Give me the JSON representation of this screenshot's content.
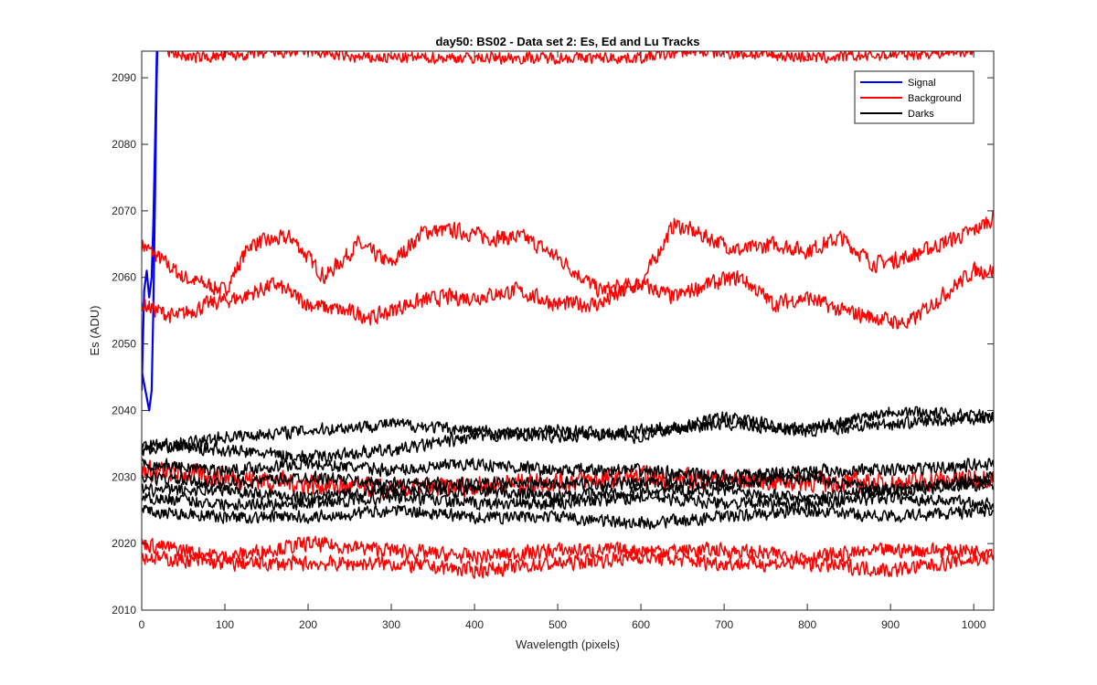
{
  "chart_data": {
    "type": "line",
    "title": "day50: BS02 - Data set 2: Es, Ed and Lu Tracks",
    "xlabel": "Wavelength (pixels)",
    "ylabel": "Es (ADU)",
    "xlim": [
      0,
      1024
    ],
    "ylim": [
      2010,
      2094
    ],
    "x_ticks": [
      0,
      100,
      200,
      300,
      400,
      500,
      600,
      700,
      800,
      900,
      1000
    ],
    "y_ticks": [
      2010,
      2020,
      2030,
      2040,
      2050,
      2060,
      2070,
      2080,
      2090
    ],
    "grid": false,
    "legend": {
      "location": "top-right",
      "entries": [
        {
          "label": "Signal",
          "color": "#0000ff"
        },
        {
          "label": "Background",
          "color": "#ff0000"
        },
        {
          "label": "Darks",
          "color": "#000000"
        }
      ]
    },
    "series": [
      {
        "group": "Signal",
        "color": "#0000ff",
        "x": [
          0,
          3,
          6,
          9,
          12,
          14,
          16,
          18,
          20
        ],
        "y": [
          2043,
          2058,
          2061,
          2057,
          2060,
          2068,
          2080,
          2093,
          2100
        ]
      },
      {
        "group": "Signal",
        "color": "#0000ff",
        "x": [
          0,
          3,
          6,
          9,
          12,
          14,
          16,
          18,
          20
        ],
        "y": [
          2046,
          2044,
          2042,
          2040,
          2043,
          2055,
          2072,
          2090,
          2100
        ]
      },
      {
        "group": "Background",
        "color": "#ff0000",
        "noise": 1.4,
        "x": [
          0,
          50,
          100,
          130,
          180,
          220,
          260,
          300,
          340,
          380,
          420,
          460,
          500,
          550,
          600,
          640,
          680,
          720,
          760,
          800,
          840,
          880,
          920,
          960,
          1000,
          1024
        ],
        "y": [
          2065,
          2060,
          2058,
          2065,
          2066,
          2060,
          2065,
          2062,
          2067,
          2067,
          2066,
          2066,
          2063,
          2058,
          2059,
          2068,
          2066,
          2064,
          2065,
          2064,
          2066,
          2062,
          2063,
          2065,
          2067,
          2069
        ]
      },
      {
        "group": "Background",
        "color": "#ff0000",
        "noise": 1.4,
        "x": [
          0,
          40,
          80,
          120,
          160,
          200,
          240,
          280,
          320,
          360,
          400,
          450,
          500,
          550,
          600,
          640,
          680,
          720,
          760,
          800,
          840,
          880,
          920,
          960,
          1000,
          1024
        ],
        "y": [
          2056,
          2054,
          2056,
          2057,
          2059,
          2056,
          2055,
          2054,
          2056,
          2057,
          2057,
          2058,
          2056,
          2056,
          2059,
          2057,
          2059,
          2060,
          2056,
          2057,
          2055,
          2054,
          2053,
          2057,
          2061,
          2061
        ]
      },
      {
        "group": "Background",
        "color": "#ff0000",
        "noise": 1.8,
        "x": [
          0,
          300,
          600,
          900,
          1024
        ],
        "y": [
          2031,
          2028,
          2030,
          2029,
          2030
        ]
      },
      {
        "group": "Background",
        "color": "#ff0000",
        "noise": 1.3,
        "x": [
          0,
          100,
          200,
          300,
          400,
          500,
          600,
          700,
          800,
          900,
          1024
        ],
        "y": [
          2020,
          2018,
          2020,
          2019,
          2018,
          2019,
          2019,
          2019,
          2018,
          2019,
          2019
        ]
      },
      {
        "group": "Background",
        "color": "#ff0000",
        "noise": 1.3,
        "x": [
          0,
          100,
          200,
          300,
          400,
          500,
          600,
          700,
          800,
          900,
          1024
        ],
        "y": [
          2018,
          2017,
          2017,
          2017,
          2016,
          2017,
          2018,
          2017,
          2017,
          2016,
          2018
        ]
      },
      {
        "group": "Background",
        "color": "#ff0000",
        "noise": 1.0,
        "clip": true,
        "x": [
          30,
          60,
          200,
          260,
          600,
          660,
          820,
          1000
        ],
        "y": [
          2094,
          2093,
          2094,
          2093,
          2093,
          2094,
          2093,
          2094
        ]
      },
      {
        "group": "Darks",
        "color": "#000000",
        "noise": 1.1,
        "x": [
          0,
          100,
          200,
          300,
          400,
          500,
          600,
          700,
          800,
          900,
          1024
        ],
        "y": [
          2034,
          2036,
          2037,
          2038,
          2037,
          2036,
          2037,
          2038,
          2037,
          2038,
          2039
        ]
      },
      {
        "group": "Darks",
        "color": "#000000",
        "noise": 1.1,
        "x": [
          0,
          100,
          200,
          300,
          400,
          500,
          600,
          700,
          800,
          900,
          1024
        ],
        "y": [
          2035,
          2034,
          2033,
          2034,
          2036,
          2037,
          2036,
          2039,
          2037,
          2040,
          2039
        ]
      },
      {
        "group": "Darks",
        "color": "#000000",
        "noise": 1.1,
        "x": [
          0,
          100,
          200,
          300,
          400,
          500,
          600,
          700,
          800,
          900,
          1024
        ],
        "y": [
          2032,
          2031,
          2032,
          2031,
          2032,
          2031,
          2031,
          2030,
          2031,
          2031,
          2032
        ]
      },
      {
        "group": "Darks",
        "color": "#000000",
        "noise": 1.1,
        "x": [
          0,
          100,
          200,
          300,
          400,
          500,
          600,
          700,
          800,
          900,
          1024
        ],
        "y": [
          2030,
          2029,
          2030,
          2029,
          2029,
          2029,
          2029,
          2029,
          2030,
          2028,
          2030
        ]
      },
      {
        "group": "Darks",
        "color": "#000000",
        "noise": 1.1,
        "x": [
          0,
          100,
          200,
          300,
          400,
          500,
          600,
          700,
          800,
          900,
          1024
        ],
        "y": [
          2028,
          2028,
          2027,
          2028,
          2028,
          2027,
          2028,
          2028,
          2027,
          2028,
          2029
        ]
      },
      {
        "group": "Darks",
        "color": "#000000",
        "noise": 1.1,
        "x": [
          0,
          100,
          200,
          300,
          400,
          500,
          600,
          700,
          800,
          900,
          1024
        ],
        "y": [
          2027,
          2026,
          2026,
          2027,
          2026,
          2026,
          2027,
          2026,
          2026,
          2027,
          2026
        ]
      },
      {
        "group": "Darks",
        "color": "#000000",
        "noise": 1.1,
        "x": [
          0,
          100,
          200,
          300,
          400,
          500,
          600,
          700,
          800,
          900,
          1024
        ],
        "y": [
          2025,
          2024,
          2024,
          2025,
          2024,
          2024,
          2023,
          2024,
          2025,
          2024,
          2025
        ]
      }
    ]
  }
}
